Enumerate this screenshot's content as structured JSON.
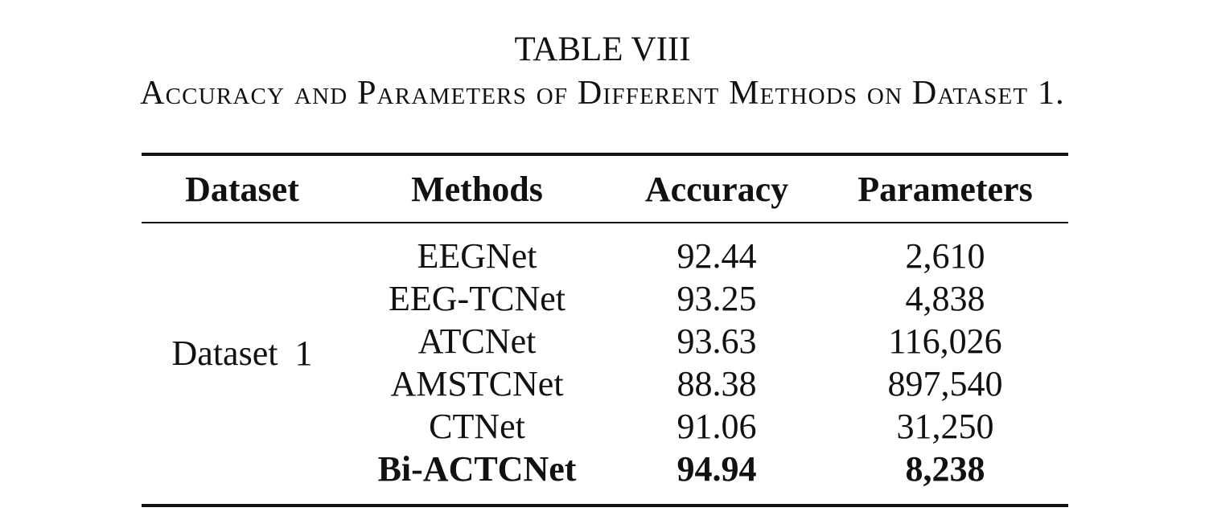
{
  "caption": {
    "number": "TABLE VIII",
    "title": "Accuracy and Parameters of Different Methods on Dataset 1."
  },
  "table": {
    "headers": [
      "Dataset",
      "Methods",
      "Accuracy",
      "Parameters"
    ],
    "dataset": "Dataset 1",
    "rows": [
      {
        "method": "EEGNet",
        "accuracy": "92.44",
        "parameters": "2,610",
        "bold": false
      },
      {
        "method": "EEG-TCNet",
        "accuracy": "93.25",
        "parameters": "4,838",
        "bold": false
      },
      {
        "method": "ATCNet",
        "accuracy": "93.63",
        "parameters": "116,026",
        "bold": false
      },
      {
        "method": "AMSTCNet",
        "accuracy": "88.38",
        "parameters": "897,540",
        "bold": false
      },
      {
        "method": "CTNet",
        "accuracy": "91.06",
        "parameters": "31,250",
        "bold": false
      },
      {
        "method": "Bi-ACTCNet",
        "accuracy": "94.94",
        "parameters": "8,238",
        "bold": true
      }
    ]
  }
}
